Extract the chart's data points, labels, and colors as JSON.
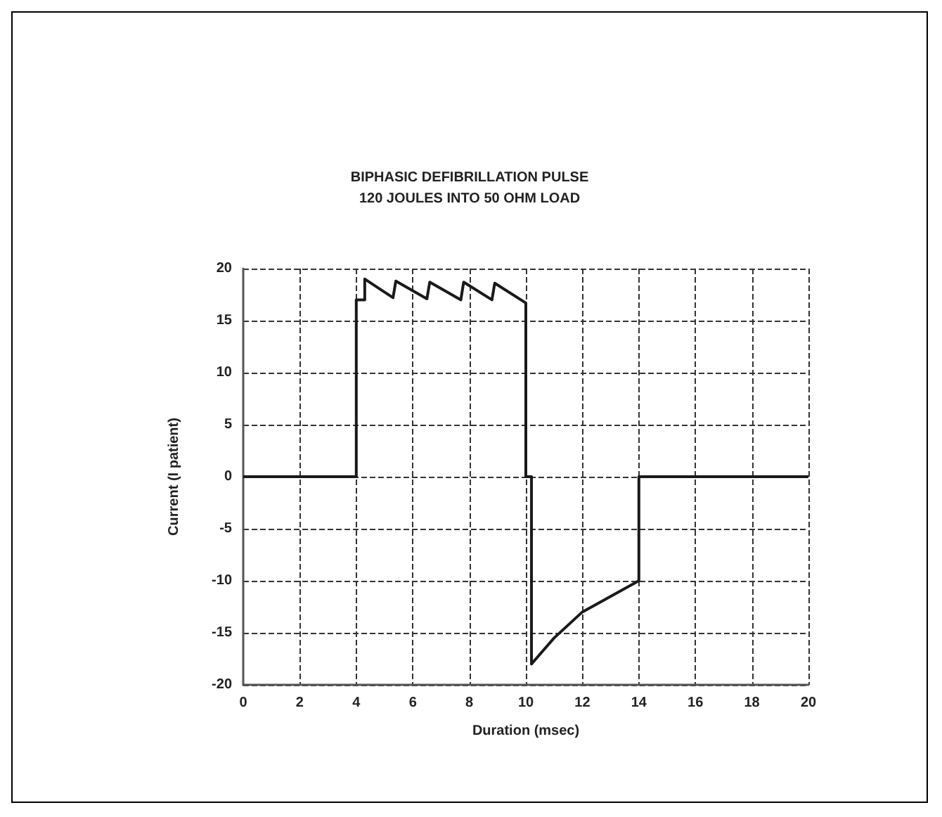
{
  "chart_data": {
    "type": "line",
    "title": "BIPHASIC DEFIBRILLATION PULSE\n120 JOULES INTO 50 OHM LOAD",
    "xlabel": "Duration (msec)",
    "ylabel": "Current (I patient)",
    "series": [
      {
        "color": "#1a1a1a",
        "x": [
          0,
          4,
          4,
          4.3,
          4.3,
          5.3,
          5.4,
          6.5,
          6.6,
          7.7,
          7.8,
          8.8,
          8.9,
          10,
          10,
          10.2,
          10.2,
          11,
          12,
          13,
          14,
          14,
          20
        ],
        "values": [
          0,
          0,
          17,
          17,
          19,
          17.2,
          18.8,
          17.1,
          18.7,
          17,
          18.7,
          17,
          18.6,
          16.7,
          0,
          0,
          -18,
          -15.5,
          -13,
          -11.5,
          -10,
          0,
          0
        ]
      }
    ],
    "xlim": [
      0,
      20
    ],
    "ylim": [
      -20,
      20
    ],
    "xticks": [
      0,
      2,
      4,
      6,
      8,
      10,
      12,
      14,
      16,
      18,
      20
    ],
    "yticks": [
      -20,
      -15,
      -10,
      -5,
      0,
      5,
      10,
      15,
      20
    ],
    "grid": true,
    "marker": "none",
    "line_style": "solid"
  }
}
